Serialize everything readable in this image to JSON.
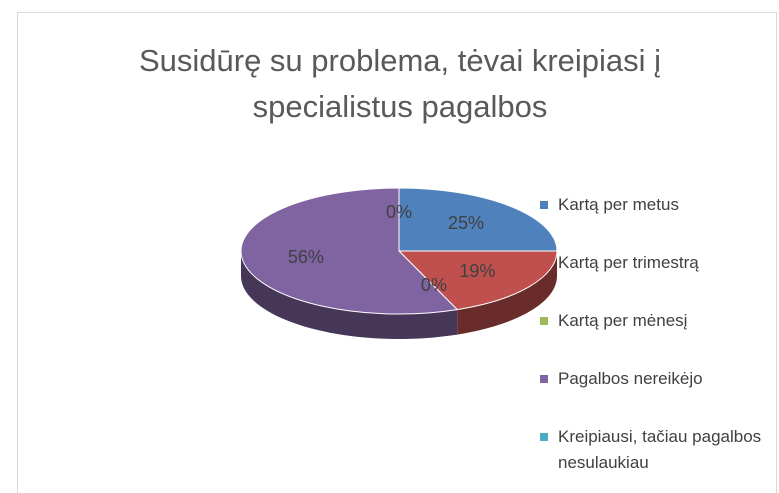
{
  "chart_data": {
    "type": "pie",
    "title": "Susidūrę su problema, tėvai kreipiasi į specialistus pagalbos",
    "categories": [
      "Kartą per metus",
      "Kartą per trimestrą",
      "Kartą per mėnesį",
      "Pagalbos nereikėjo",
      "Kreipiausi, tačiau pagalbos nesulaukiau"
    ],
    "values": [
      25,
      19,
      0,
      56,
      0
    ],
    "value_labels": [
      "25%",
      "19%",
      "0%",
      "56%",
      "0%"
    ],
    "colors": [
      "#4f81bd",
      "#c0504d",
      "#9bbb59",
      "#8064a2",
      "#4bacc6"
    ],
    "legend": "right"
  }
}
